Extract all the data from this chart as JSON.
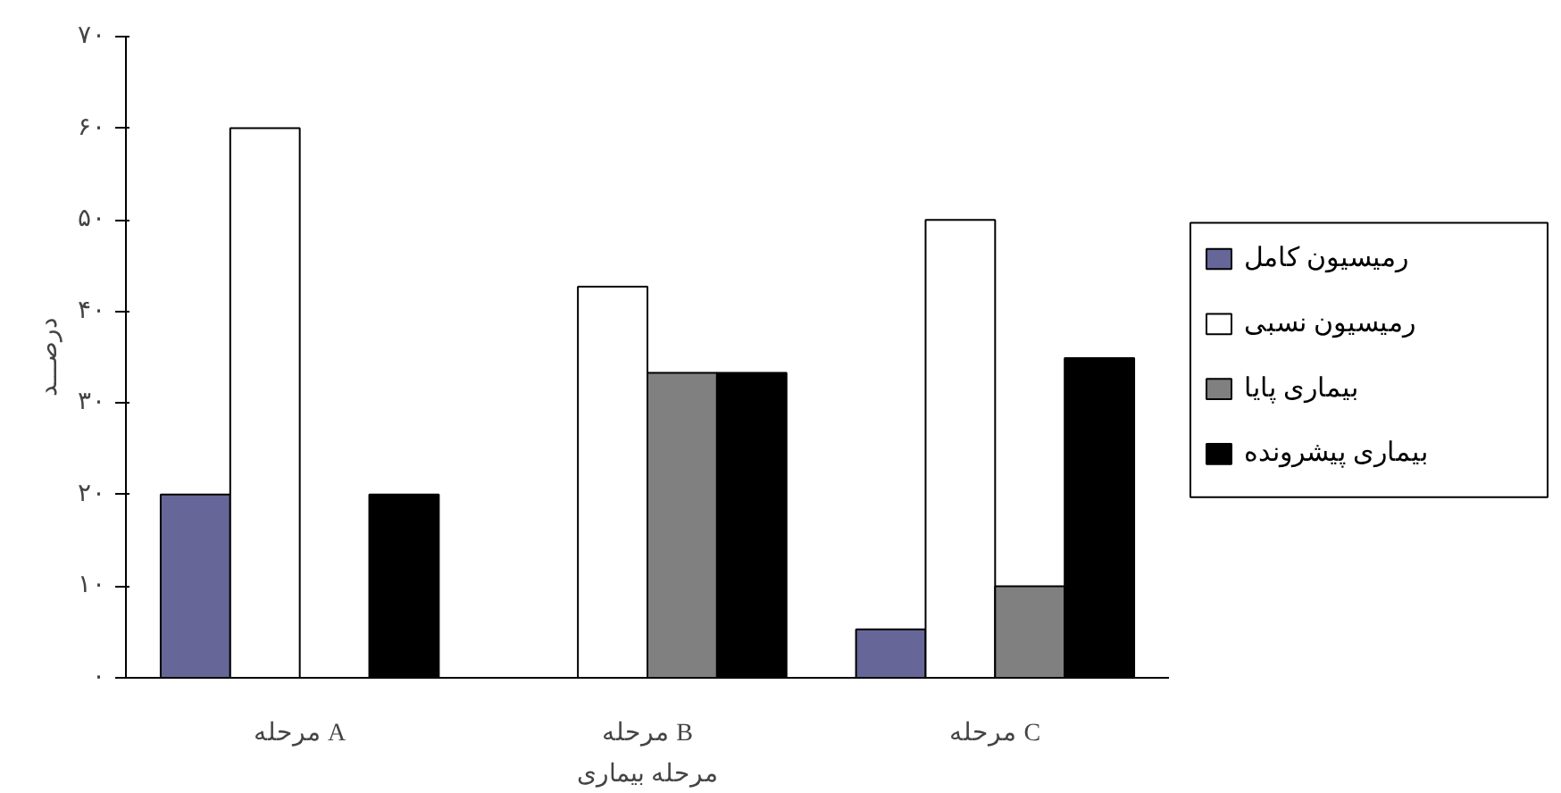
{
  "chart_data": {
    "type": "bar",
    "xlabel": "مرحله بیماری",
    "ylabel": "درصـــد",
    "categories": [
      "مرحله A",
      "مرحله B",
      "مرحله C"
    ],
    "series": [
      {
        "name": "رمیسیون کامل",
        "color": "#666699",
        "values": [
          20,
          null,
          5.3
        ]
      },
      {
        "name": "رمیسیون نسبی",
        "color": "#ffffff",
        "values": [
          60,
          42.7,
          50
        ]
      },
      {
        "name": "بیماری پایا",
        "color": "#808080",
        "values": [
          null,
          33.3,
          10
        ]
      },
      {
        "name": "بیماری پیشرونده",
        "color": "#000000",
        "values": [
          20,
          33.3,
          34.9
        ]
      }
    ],
    "ylim": [
      0,
      70
    ],
    "yticks": [
      {
        "value": 0,
        "label": "۰"
      },
      {
        "value": 10,
        "label": "۱۰"
      },
      {
        "value": 20,
        "label": "۲۰"
      },
      {
        "value": 30,
        "label": "۳۰"
      },
      {
        "value": 40,
        "label": "۴۰"
      },
      {
        "value": 50,
        "label": "۵۰"
      },
      {
        "value": 60,
        "label": "۶۰"
      },
      {
        "value": 70,
        "label": "۷۰"
      }
    ],
    "grid": false,
    "legend": "right"
  }
}
